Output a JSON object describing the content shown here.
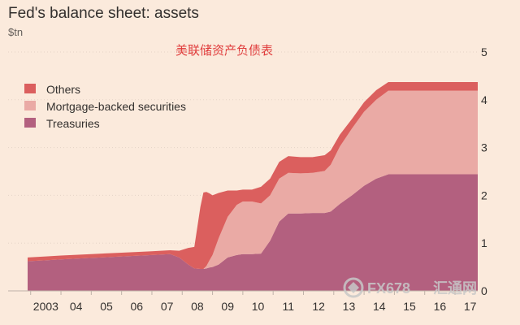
{
  "chart_data": {
    "type": "area",
    "stacked": true,
    "title": "Fed's balance sheet: assets",
    "unit": "$tn",
    "subtitle": "美联储资产负债表",
    "xlim": [
      2002.9,
      2017.75
    ],
    "ylim": [
      0,
      5
    ],
    "y_ticks": [
      0,
      1,
      2,
      3,
      4,
      5
    ],
    "x_tick_values": [
      2003,
      2004,
      2005,
      2006,
      2007,
      2008,
      2009,
      2010,
      2011,
      2012,
      2013,
      2014,
      2015,
      2016,
      2017
    ],
    "x_tick_labels": [
      "2003",
      "04",
      "05",
      "06",
      "07",
      "08",
      "09",
      "10",
      "11",
      "12",
      "13",
      "14",
      "15",
      "16",
      "17"
    ],
    "legend_position": "top-left",
    "grid": true,
    "x": [
      2002.9,
      2003.5,
      2004,
      2005,
      2006,
      2007,
      2007.6,
      2007.9,
      2008.2,
      2008.4,
      2008.6,
      2008.7,
      2008.8,
      2008.9,
      2009.0,
      2009.2,
      2009.5,
      2009.8,
      2010.0,
      2010.3,
      2010.6,
      2010.9,
      2011.2,
      2011.5,
      2011.9,
      2012.3,
      2012.7,
      2012.9,
      2013.2,
      2013.6,
      2014.0,
      2014.4,
      2014.8,
      2015,
      2016,
      2017,
      2017.75
    ],
    "series": [
      {
        "name": "Treasuries",
        "color": "#b3607f",
        "values": [
          0.62,
          0.64,
          0.66,
          0.69,
          0.72,
          0.75,
          0.77,
          0.7,
          0.55,
          0.47,
          0.46,
          0.46,
          0.47,
          0.49,
          0.5,
          0.55,
          0.7,
          0.75,
          0.77,
          0.77,
          0.78,
          1.05,
          1.45,
          1.62,
          1.62,
          1.63,
          1.63,
          1.66,
          1.82,
          2.0,
          2.2,
          2.35,
          2.44,
          2.44,
          2.44,
          2.44,
          2.44
        ]
      },
      {
        "name": "Mortgage-backed securities",
        "color": "#eaaaa5",
        "values": [
          0,
          0,
          0,
          0,
          0,
          0,
          0,
          0,
          0,
          0,
          0,
          0,
          0.05,
          0.15,
          0.25,
          0.55,
          0.85,
          1.05,
          1.1,
          1.1,
          1.05,
          0.95,
          0.9,
          0.85,
          0.84,
          0.84,
          0.88,
          0.98,
          1.2,
          1.4,
          1.55,
          1.65,
          1.75,
          1.75,
          1.75,
          1.75,
          1.75
        ]
      },
      {
        "name": "Others",
        "color": "#db5f5e",
        "values": [
          0.08,
          0.08,
          0.08,
          0.08,
          0.08,
          0.08,
          0.08,
          0.14,
          0.35,
          0.45,
          1.3,
          1.6,
          1.55,
          1.4,
          1.25,
          0.95,
          0.55,
          0.3,
          0.25,
          0.25,
          0.35,
          0.35,
          0.35,
          0.35,
          0.34,
          0.33,
          0.33,
          0.3,
          0.25,
          0.2,
          0.2,
          0.2,
          0.18,
          0.18,
          0.18,
          0.18,
          0.18
        ]
      }
    ],
    "legend_order": [
      "Others",
      "Mortgage-backed securities",
      "Treasuries"
    ]
  },
  "watermark": {
    "text_latin": "FX678",
    "text_cjk": "汇通网",
    "color": "#c8c8c8",
    "icon": "fx678-logo-icon"
  }
}
